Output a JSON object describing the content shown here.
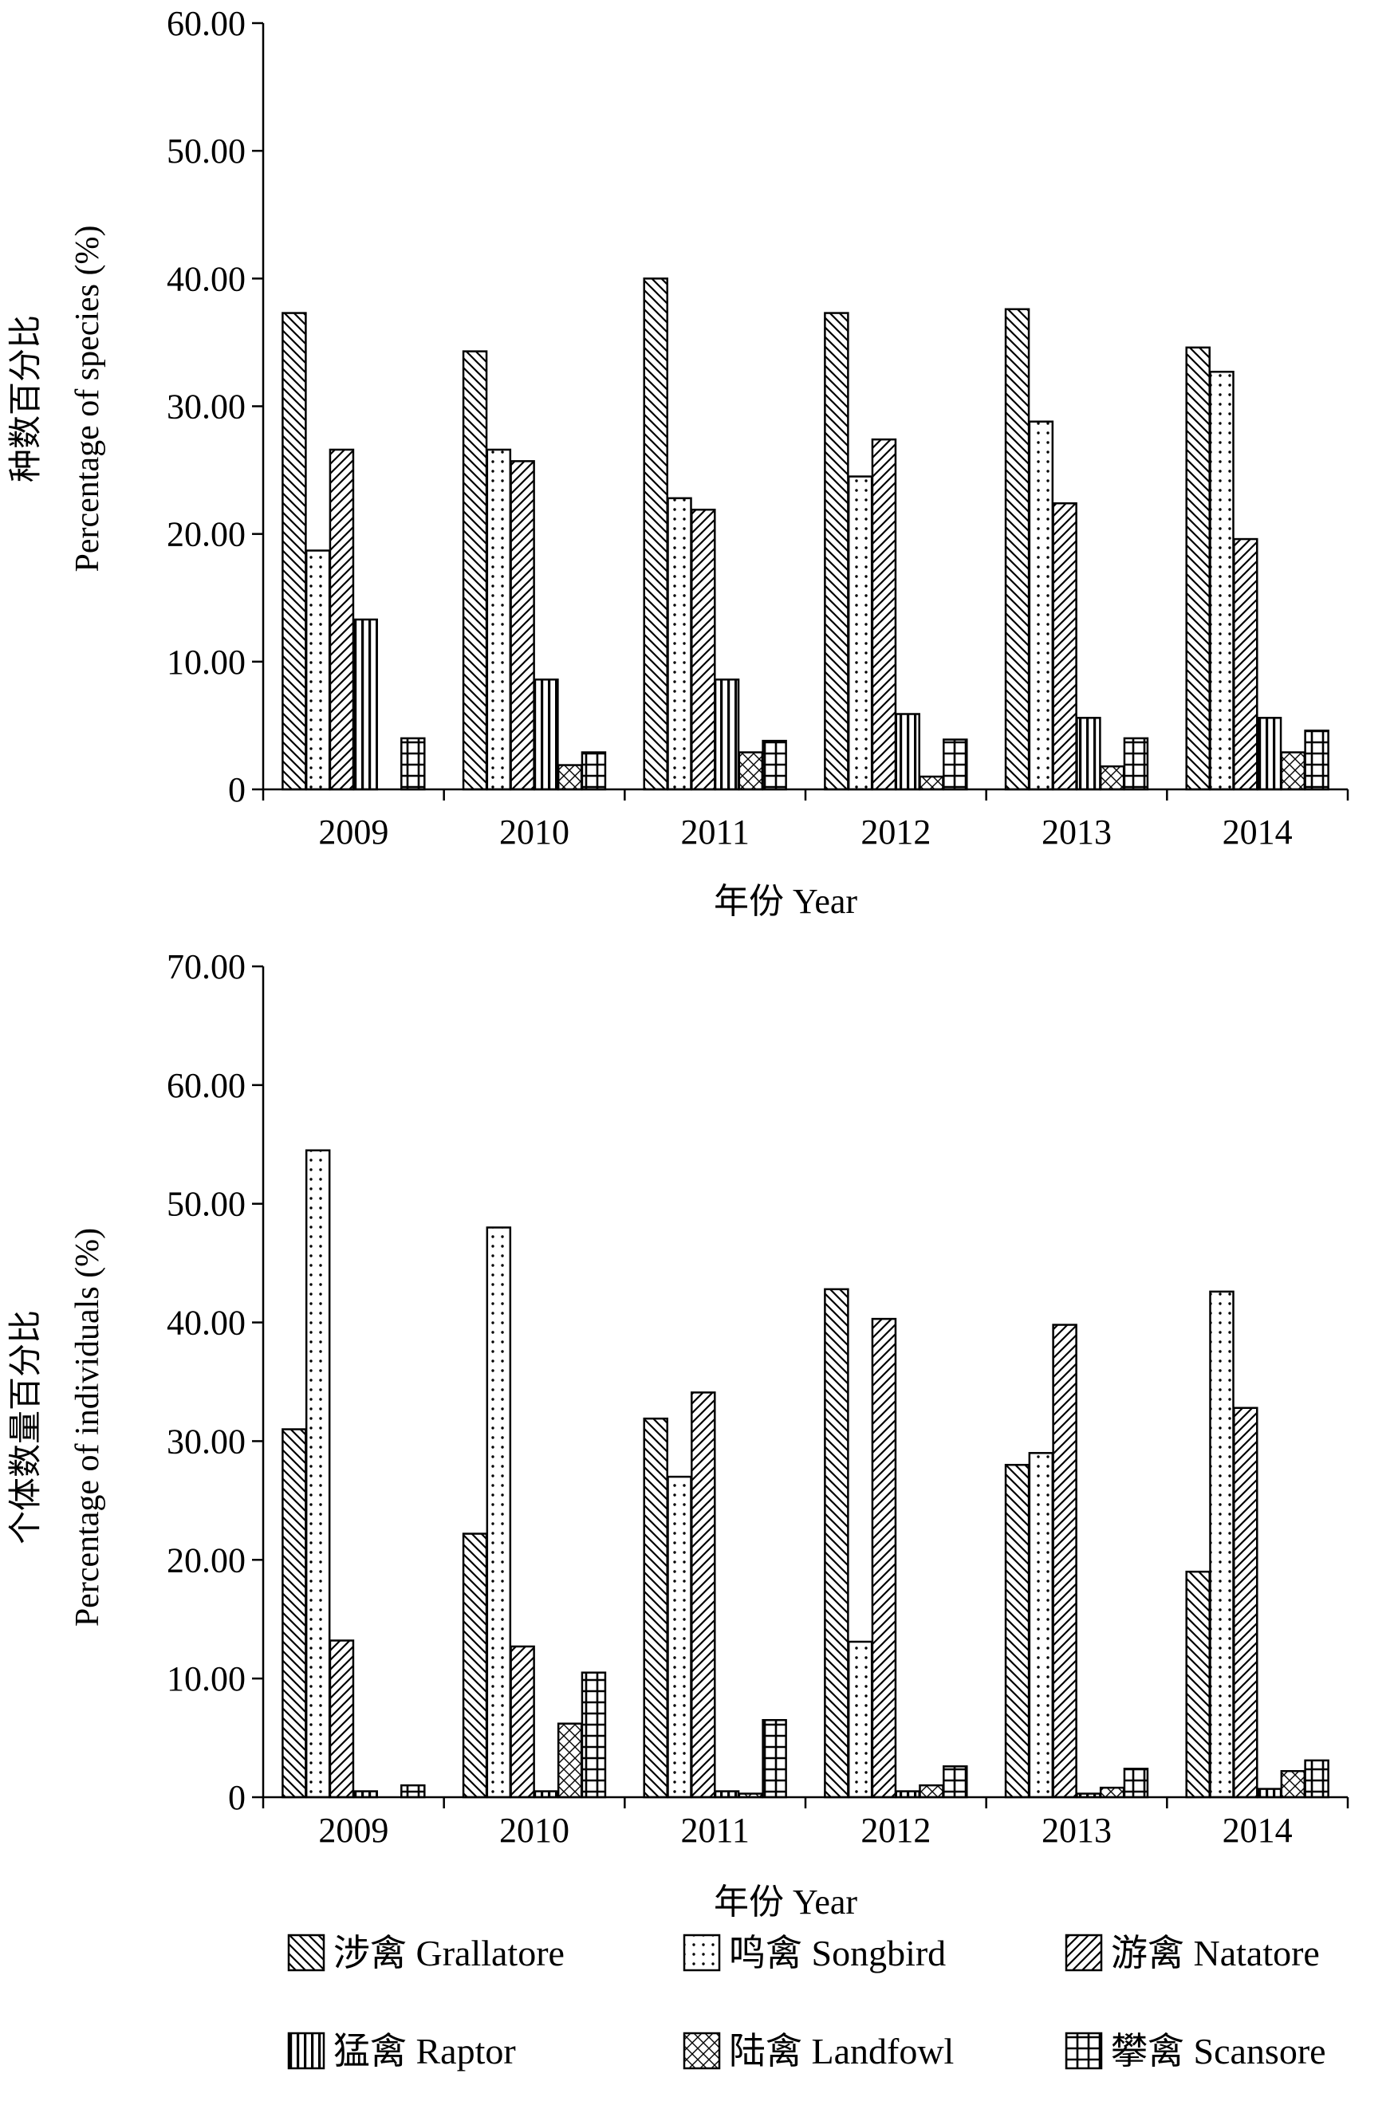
{
  "legend": {
    "columns": 3,
    "items": [
      {
        "label": "涉禽 Grallatore",
        "pattern": "diag-back"
      },
      {
        "label": "鸣禽 Songbird",
        "pattern": "dots"
      },
      {
        "label": "游禽 Natatore",
        "pattern": "diag-fwd"
      },
      {
        "label": "猛禽 Raptor",
        "pattern": "vlines"
      },
      {
        "label": "陆禽 Landfowl",
        "pattern": "cross-diag"
      },
      {
        "label": "攀禽 Scansore",
        "pattern": "grid"
      }
    ]
  },
  "chart_data": [
    {
      "type": "bar",
      "title": "",
      "xlabel": "年份 Year",
      "ylabel": [
        "种数百分比",
        "Percentage of species (%)"
      ],
      "ylim": [
        0,
        60
      ],
      "yticks": [
        "0",
        "10.00",
        "20.00",
        "30.00",
        "40.00",
        "50.00",
        "60.00"
      ],
      "categories": [
        "2009",
        "2010",
        "2011",
        "2012",
        "2013",
        "2014"
      ],
      "series": [
        {
          "name": "涉禽 Grallatore",
          "values": [
            37.3,
            34.3,
            40.0,
            37.3,
            37.6,
            34.6
          ]
        },
        {
          "name": "鸣禽 Songbird",
          "values": [
            18.7,
            26.6,
            22.8,
            24.5,
            28.8,
            32.7
          ]
        },
        {
          "name": "游禽 Natatore",
          "values": [
            26.6,
            25.7,
            21.9,
            27.4,
            22.4,
            19.6
          ]
        },
        {
          "name": "猛禽 Raptor",
          "values": [
            13.3,
            8.6,
            8.6,
            5.9,
            5.6,
            5.6
          ]
        },
        {
          "name": "陆禽 Landfowl",
          "values": [
            0,
            1.9,
            2.9,
            1.0,
            1.8,
            2.9
          ]
        },
        {
          "name": "攀禽 Scansore",
          "values": [
            4.0,
            2.9,
            3.8,
            3.9,
            4.0,
            4.6
          ]
        }
      ],
      "grid": false,
      "legend": "bottom"
    },
    {
      "type": "bar",
      "title": "",
      "xlabel": "年份 Year",
      "ylabel": [
        "个体数量百分比",
        "Percentage of individuals (%)"
      ],
      "ylim": [
        0,
        70
      ],
      "yticks": [
        "0",
        "10.00",
        "20.00",
        "30.00",
        "40.00",
        "50.00",
        "60.00",
        "70.00"
      ],
      "categories": [
        "2009",
        "2010",
        "2011",
        "2012",
        "2013",
        "2014"
      ],
      "series": [
        {
          "name": "涉禽 Grallatore",
          "values": [
            31.0,
            22.2,
            31.9,
            42.8,
            28.0,
            19.0
          ]
        },
        {
          "name": "鸣禽 Songbird",
          "values": [
            54.5,
            48.0,
            27.0,
            13.1,
            29.0,
            42.6
          ]
        },
        {
          "name": "游禽 Natatore",
          "values": [
            13.2,
            12.7,
            34.1,
            40.3,
            39.8,
            32.8
          ]
        },
        {
          "name": "猛禽 Raptor",
          "values": [
            0.5,
            0.5,
            0.5,
            0.5,
            0.3,
            0.7
          ]
        },
        {
          "name": "陆禽 Landfowl",
          "values": [
            0,
            6.2,
            0.3,
            1.0,
            0.8,
            2.2
          ]
        },
        {
          "name": "攀禽 Scansore",
          "values": [
            1.0,
            10.5,
            6.5,
            2.6,
            2.4,
            3.1
          ]
        }
      ],
      "grid": false,
      "legend": "bottom"
    }
  ]
}
